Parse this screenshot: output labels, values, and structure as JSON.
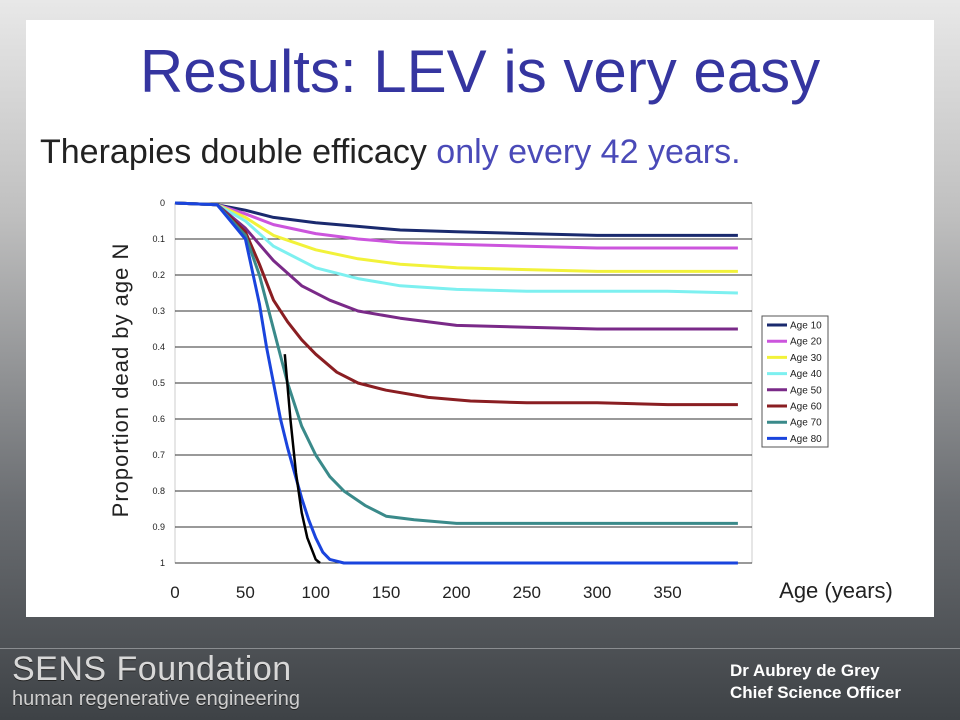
{
  "slide": {
    "title": "Results: LEV is very easy",
    "subtitle_main": "Therapies double efficacy ",
    "subtitle_highlight": "only every 42 years.",
    "logo_line1": "SENS Foundation",
    "logo_line2": "human regenerative engineering",
    "speaker_name": "Dr Aubrey de Grey",
    "speaker_role": "Chief Science Officer"
  },
  "chart_data": {
    "type": "line",
    "title": "",
    "xlabel": "Age (years)",
    "ylabel": "Proportion dead by age N",
    "xlim": [
      0,
      410
    ],
    "ylim": [
      0,
      1
    ],
    "y_inverted": true,
    "x_ticks": [
      0,
      50,
      100,
      150,
      200,
      250,
      300,
      350
    ],
    "y_ticks": [
      0,
      0.1,
      0.2,
      0.3,
      0.4,
      0.5,
      0.6,
      0.7,
      0.8,
      0.9,
      1
    ],
    "grid": true,
    "legend_position": "right",
    "series": [
      {
        "name": "Age 10",
        "color": "#1a2a6e",
        "x": [
          0,
          30,
          50,
          70,
          100,
          130,
          160,
          200,
          250,
          300,
          350,
          400
        ],
        "y": [
          0,
          0.005,
          0.02,
          0.04,
          0.055,
          0.065,
          0.075,
          0.08,
          0.085,
          0.09,
          0.09,
          0.09
        ]
      },
      {
        "name": "Age 20",
        "color": "#cc55dd",
        "x": [
          0,
          30,
          50,
          70,
          100,
          130,
          160,
          200,
          250,
          300,
          350,
          400
        ],
        "y": [
          0,
          0.005,
          0.03,
          0.06,
          0.085,
          0.1,
          0.11,
          0.115,
          0.12,
          0.125,
          0.125,
          0.125
        ]
      },
      {
        "name": "Age 30",
        "color": "#f2f23a",
        "x": [
          0,
          30,
          50,
          70,
          100,
          130,
          160,
          200,
          250,
          300,
          350,
          400
        ],
        "y": [
          0,
          0.005,
          0.04,
          0.09,
          0.13,
          0.155,
          0.17,
          0.18,
          0.185,
          0.19,
          0.19,
          0.19
        ]
      },
      {
        "name": "Age 40",
        "color": "#7df0f0",
        "x": [
          0,
          30,
          50,
          70,
          100,
          130,
          160,
          200,
          250,
          300,
          350,
          400
        ],
        "y": [
          0,
          0.005,
          0.05,
          0.12,
          0.18,
          0.21,
          0.23,
          0.24,
          0.245,
          0.245,
          0.245,
          0.25
        ]
      },
      {
        "name": "Age 50",
        "color": "#7a2a88",
        "x": [
          0,
          30,
          50,
          70,
          90,
          110,
          130,
          160,
          200,
          250,
          300,
          350,
          400
        ],
        "y": [
          0,
          0.005,
          0.07,
          0.16,
          0.23,
          0.27,
          0.3,
          0.32,
          0.34,
          0.345,
          0.35,
          0.35,
          0.35
        ]
      },
      {
        "name": "Age 60",
        "color": "#8a1e22",
        "x": [
          0,
          30,
          50,
          60,
          70,
          80,
          90,
          100,
          115,
          130,
          150,
          180,
          210,
          250,
          300,
          350,
          400
        ],
        "y": [
          0,
          0.005,
          0.08,
          0.17,
          0.27,
          0.33,
          0.38,
          0.42,
          0.47,
          0.5,
          0.52,
          0.54,
          0.55,
          0.555,
          0.555,
          0.56,
          0.56
        ]
      },
      {
        "name": "Age 70",
        "color": "#3a8a8a",
        "x": [
          0,
          30,
          50,
          60,
          70,
          80,
          90,
          100,
          110,
          120,
          135,
          150,
          170,
          200,
          250,
          300,
          350,
          400
        ],
        "y": [
          0,
          0.005,
          0.09,
          0.2,
          0.35,
          0.5,
          0.62,
          0.7,
          0.76,
          0.8,
          0.84,
          0.87,
          0.88,
          0.89,
          0.89,
          0.89,
          0.89,
          0.89
        ]
      },
      {
        "name": "Age 80",
        "color": "#1a44dd",
        "x": [
          0,
          30,
          50,
          60,
          65,
          70,
          75,
          80,
          85,
          90,
          95,
          100,
          105,
          110,
          120,
          150,
          200,
          300,
          400
        ],
        "y": [
          0,
          0.005,
          0.1,
          0.28,
          0.4,
          0.5,
          0.6,
          0.68,
          0.75,
          0.82,
          0.88,
          0.93,
          0.97,
          0.99,
          1,
          1,
          1,
          1,
          1
        ]
      },
      {
        "color": "#000000",
        "x": [
          78,
          82,
          86,
          90,
          94,
          98,
          100,
          103
        ],
        "y": [
          0.42,
          0.6,
          0.75,
          0.86,
          0.93,
          0.97,
          0.99,
          1
        ]
      }
    ]
  }
}
